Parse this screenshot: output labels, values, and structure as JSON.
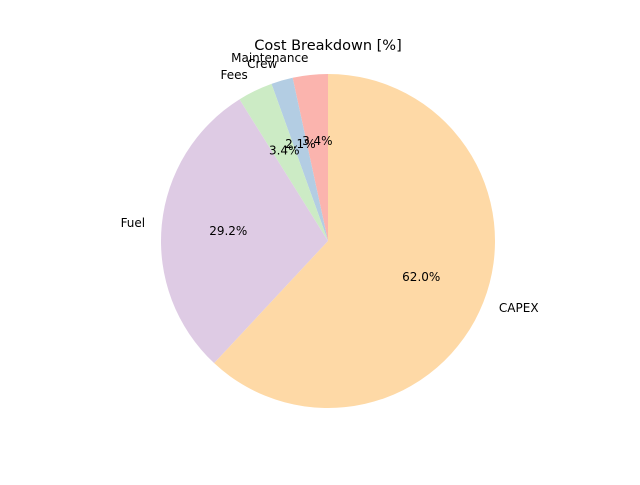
{
  "chart_data": {
    "type": "pie",
    "title": "Cost Breakdown [%]",
    "start_angle_deg": 90,
    "direction": "counterclockwise",
    "slices": [
      {
        "label": "Maintenance",
        "value": 3.4,
        "pct_label": "3.4%",
        "color": "#fbb4ae"
      },
      {
        "label": "Crew",
        "value": 2.1,
        "pct_label": "2.1%",
        "color": "#b3cde3"
      },
      {
        "label": "Fees",
        "value": 3.4,
        "pct_label": "3.4%",
        "color": "#ccebc5"
      },
      {
        "label": "Fuel",
        "value": 29.2,
        "pct_label": "29.2%",
        "color": "#decbe4"
      },
      {
        "label": "CAPEX",
        "value": 62.0,
        "pct_label": "62.0%",
        "color": "#fed9a6"
      }
    ]
  }
}
